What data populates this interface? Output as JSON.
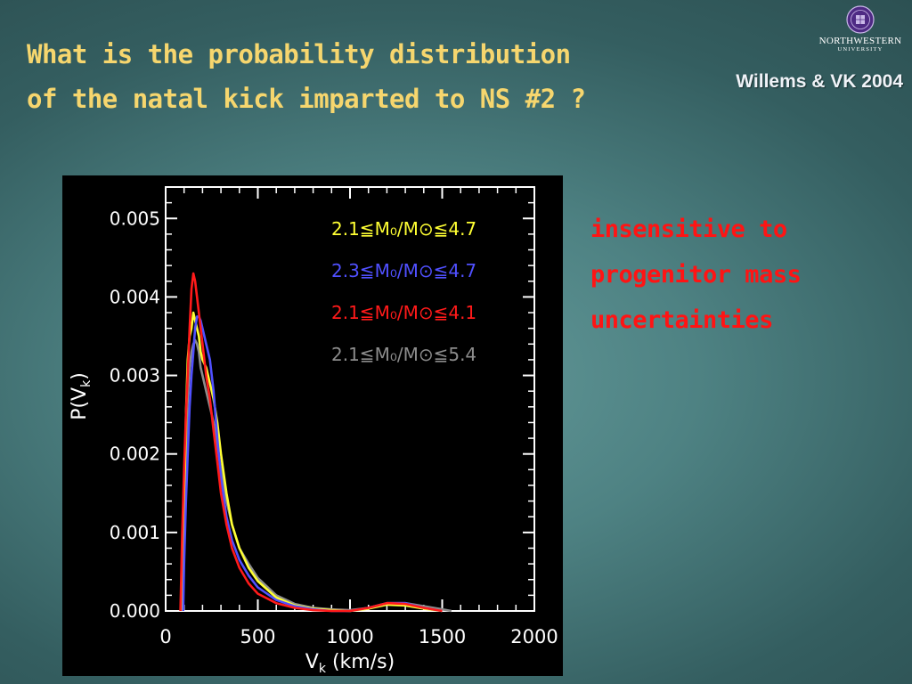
{
  "slide": {
    "title_lines": [
      "What is the probability distribution",
      "of the natal kick imparted to NS #2 ?"
    ],
    "citation": "Willems & VK 2004",
    "logo": {
      "name": "NORTHWESTERN",
      "subtitle": "UNIVERSITY"
    },
    "note_lines": [
      "insensitive to",
      "progenitor mass",
      "uncertainties"
    ]
  },
  "chart_data": {
    "type": "line",
    "xlabel": "V",
    "xlabel_sub": "k",
    "xlabel_unit": "(km/s)",
    "ylabel": "P(V",
    "ylabel_sub": "k",
    "ylabel_close": ")",
    "xlim": [
      0,
      2000
    ],
    "ylim": [
      0,
      0.0054
    ],
    "xticks": [
      0,
      500,
      1000,
      1500,
      2000
    ],
    "yticks": [
      0.0,
      0.001,
      0.002,
      0.003,
      0.004,
      0.005
    ],
    "xtick_labels": [
      "0",
      "500",
      "1000",
      "1500",
      "2000"
    ],
    "ytick_labels": [
      "0.000",
      "0.001",
      "0.002",
      "0.003",
      "0.004",
      "0.005"
    ],
    "grid": false,
    "legend_position": "top-right",
    "series": [
      {
        "name": "2.1≦M₀/M⊙≦4.7",
        "color": "#ffff33",
        "x": [
          90,
          100,
          110,
          120,
          130,
          140,
          150,
          160,
          170,
          180,
          190,
          200,
          220,
          240,
          260,
          280,
          300,
          330,
          360,
          400,
          450,
          500,
          600,
          700,
          800,
          900,
          1000,
          1100,
          1200,
          1300,
          1400,
          1500
        ],
        "y": [
          0.0,
          0.0012,
          0.0025,
          0.0032,
          0.0035,
          0.0036,
          0.0038,
          0.0037,
          0.0036,
          0.0035,
          0.0033,
          0.0032,
          0.0031,
          0.0029,
          0.0027,
          0.0024,
          0.002,
          0.0015,
          0.0011,
          0.0008,
          0.00055,
          0.00038,
          0.00017,
          7e-05,
          3e-05,
          1e-05,
          0.0,
          3e-05,
          8e-05,
          7e-05,
          3e-05,
          0.0
        ]
      },
      {
        "name": "2.3≦M₀/M⊙≦4.7",
        "color": "#5050ff",
        "x": [
          95,
          100,
          110,
          120,
          130,
          140,
          150,
          160,
          170,
          180,
          190,
          200,
          220,
          240,
          260,
          280,
          300,
          330,
          360,
          400,
          450,
          500,
          600,
          700,
          800,
          900,
          1000,
          1100,
          1200,
          1300,
          1400,
          1500
        ],
        "y": [
          0.0,
          0.0006,
          0.0014,
          0.002,
          0.0026,
          0.003,
          0.0033,
          0.0036,
          0.00375,
          0.00375,
          0.0037,
          0.0036,
          0.0034,
          0.0032,
          0.0028,
          0.0022,
          0.0017,
          0.0012,
          0.0009,
          0.00065,
          0.00045,
          0.0003,
          0.00014,
          6e-05,
          2e-05,
          0.0,
          0.0,
          4e-05,
          0.0001,
          0.0001,
          4e-05,
          0.0
        ]
      },
      {
        "name": "2.1≦M₀/M⊙≦4.1",
        "color": "#ff1a1a",
        "x": [
          80,
          90,
          100,
          110,
          120,
          130,
          140,
          150,
          160,
          170,
          180,
          190,
          200,
          220,
          240,
          260,
          280,
          300,
          330,
          360,
          400,
          450,
          500,
          600,
          700,
          800,
          900,
          1000,
          1100,
          1200,
          1300,
          1400,
          1500
        ],
        "y": [
          0.0,
          0.001,
          0.0018,
          0.0025,
          0.003,
          0.0036,
          0.0041,
          0.0043,
          0.0042,
          0.004,
          0.0038,
          0.0036,
          0.0034,
          0.003,
          0.0027,
          0.0023,
          0.0019,
          0.0015,
          0.0011,
          0.0008,
          0.00055,
          0.00035,
          0.00022,
          0.0001,
          4e-05,
          1e-05,
          0.0,
          0.0,
          4e-05,
          0.0001,
          9e-05,
          4e-05,
          0.0
        ]
      },
      {
        "name": "2.1≦M₀/M⊙≦5.4",
        "color": "#8c8c8c",
        "x": [
          90,
          100,
          110,
          120,
          130,
          140,
          150,
          160,
          170,
          180,
          190,
          200,
          220,
          240,
          260,
          280,
          300,
          330,
          360,
          400,
          450,
          500,
          600,
          700,
          800,
          900,
          1000,
          1100,
          1200,
          1300,
          1400,
          1500,
          1550
        ],
        "y": [
          0.0,
          0.001,
          0.002,
          0.0027,
          0.0031,
          0.0033,
          0.0034,
          0.00345,
          0.0034,
          0.0033,
          0.0031,
          0.003,
          0.0028,
          0.0026,
          0.0024,
          0.0021,
          0.0018,
          0.0014,
          0.0011,
          0.0008,
          0.0006,
          0.00042,
          0.0002,
          9e-05,
          4e-05,
          2e-05,
          1e-05,
          4e-05,
          0.0001,
          0.0001,
          6e-05,
          2e-05,
          0.0
        ]
      }
    ]
  }
}
